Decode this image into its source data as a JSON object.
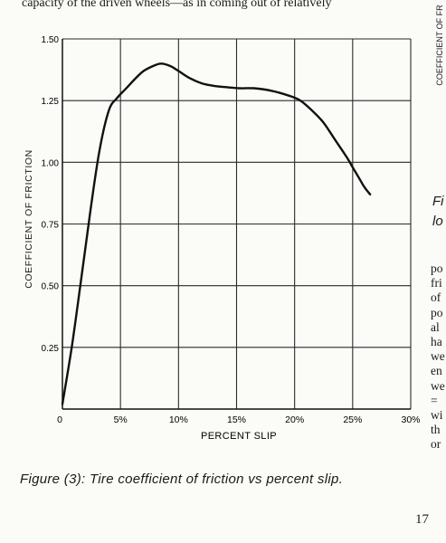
{
  "page": {
    "top_text": "capacity of the driven wheels—as in coming out of relatively",
    "caption": "Figure (3): Tire coefficient of friction vs percent slip.",
    "page_number": "17"
  },
  "right_column": {
    "side_label": "COEFFICIENT OF FR",
    "fig_fragment": [
      "Fi",
      "lo"
    ],
    "text_lines": [
      "po",
      "fri",
      "of",
      "po",
      "al",
      "ha",
      "we",
      "en",
      "we",
      "=",
      "wi",
      "th",
      "or"
    ]
  },
  "chart_data": {
    "type": "line",
    "title": "",
    "xlabel": "PERCENT SLIP",
    "ylabel": "COEFFICIENT OF FRICTION",
    "xlim": [
      0,
      30
    ],
    "ylim": [
      0,
      1.5
    ],
    "x_ticks": [
      0,
      5,
      10,
      15,
      20,
      25,
      30
    ],
    "x_tick_labels": [
      "0",
      "5%",
      "10%",
      "15%",
      "20%",
      "25%",
      "30%"
    ],
    "y_ticks": [
      0.25,
      0.5,
      0.75,
      1.0,
      1.25,
      1.5
    ],
    "y_tick_labels": [
      "0.25",
      "0.50",
      "0.75",
      "1.00",
      "1.25",
      "1.50"
    ],
    "grid": true,
    "legend": "none",
    "series": [
      {
        "x": [
          0,
          0.8,
          1.6,
          2.4,
          3.2,
          4.0,
          4.7,
          5.5,
          6.3,
          7.0,
          7.8,
          8.5,
          9.3,
          10.0,
          11.0,
          12.0,
          13.0,
          14.0,
          15.2,
          16.5,
          18.0,
          19.5,
          20.5,
          21.5,
          22.5,
          23.5,
          24.5,
          25.0,
          25.5,
          26.0,
          26.5
        ],
        "y": [
          0.02,
          0.25,
          0.52,
          0.8,
          1.05,
          1.21,
          1.26,
          1.3,
          1.34,
          1.37,
          1.39,
          1.4,
          1.39,
          1.37,
          1.34,
          1.32,
          1.31,
          1.305,
          1.3,
          1.3,
          1.29,
          1.27,
          1.25,
          1.21,
          1.16,
          1.09,
          1.02,
          0.98,
          0.94,
          0.9,
          0.87
        ]
      }
    ]
  }
}
